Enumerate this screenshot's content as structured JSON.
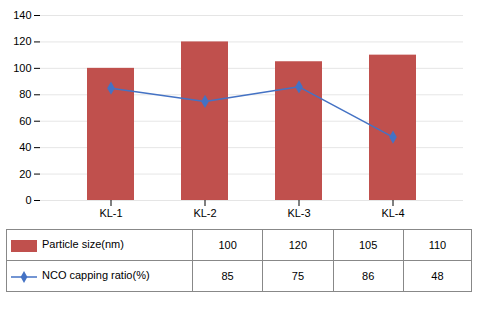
{
  "chart_data": {
    "type": "bar",
    "categories": [
      "KL-1",
      "KL-2",
      "KL-3",
      "KL-4"
    ],
    "series": [
      {
        "name": "Particle size(nm)",
        "type": "bar",
        "color": "#c0504d",
        "values": [
          100,
          120,
          105,
          110
        ]
      },
      {
        "name": "NCO capping ratio(%)",
        "type": "line",
        "color": "#4472c4",
        "marker": "diamond",
        "values": [
          85,
          75,
          86,
          48
        ]
      }
    ],
    "ylim": [
      0,
      140
    ],
    "yticks": [
      0,
      20,
      40,
      60,
      80,
      100,
      120,
      140
    ],
    "grid": true,
    "legend": "bottom"
  }
}
